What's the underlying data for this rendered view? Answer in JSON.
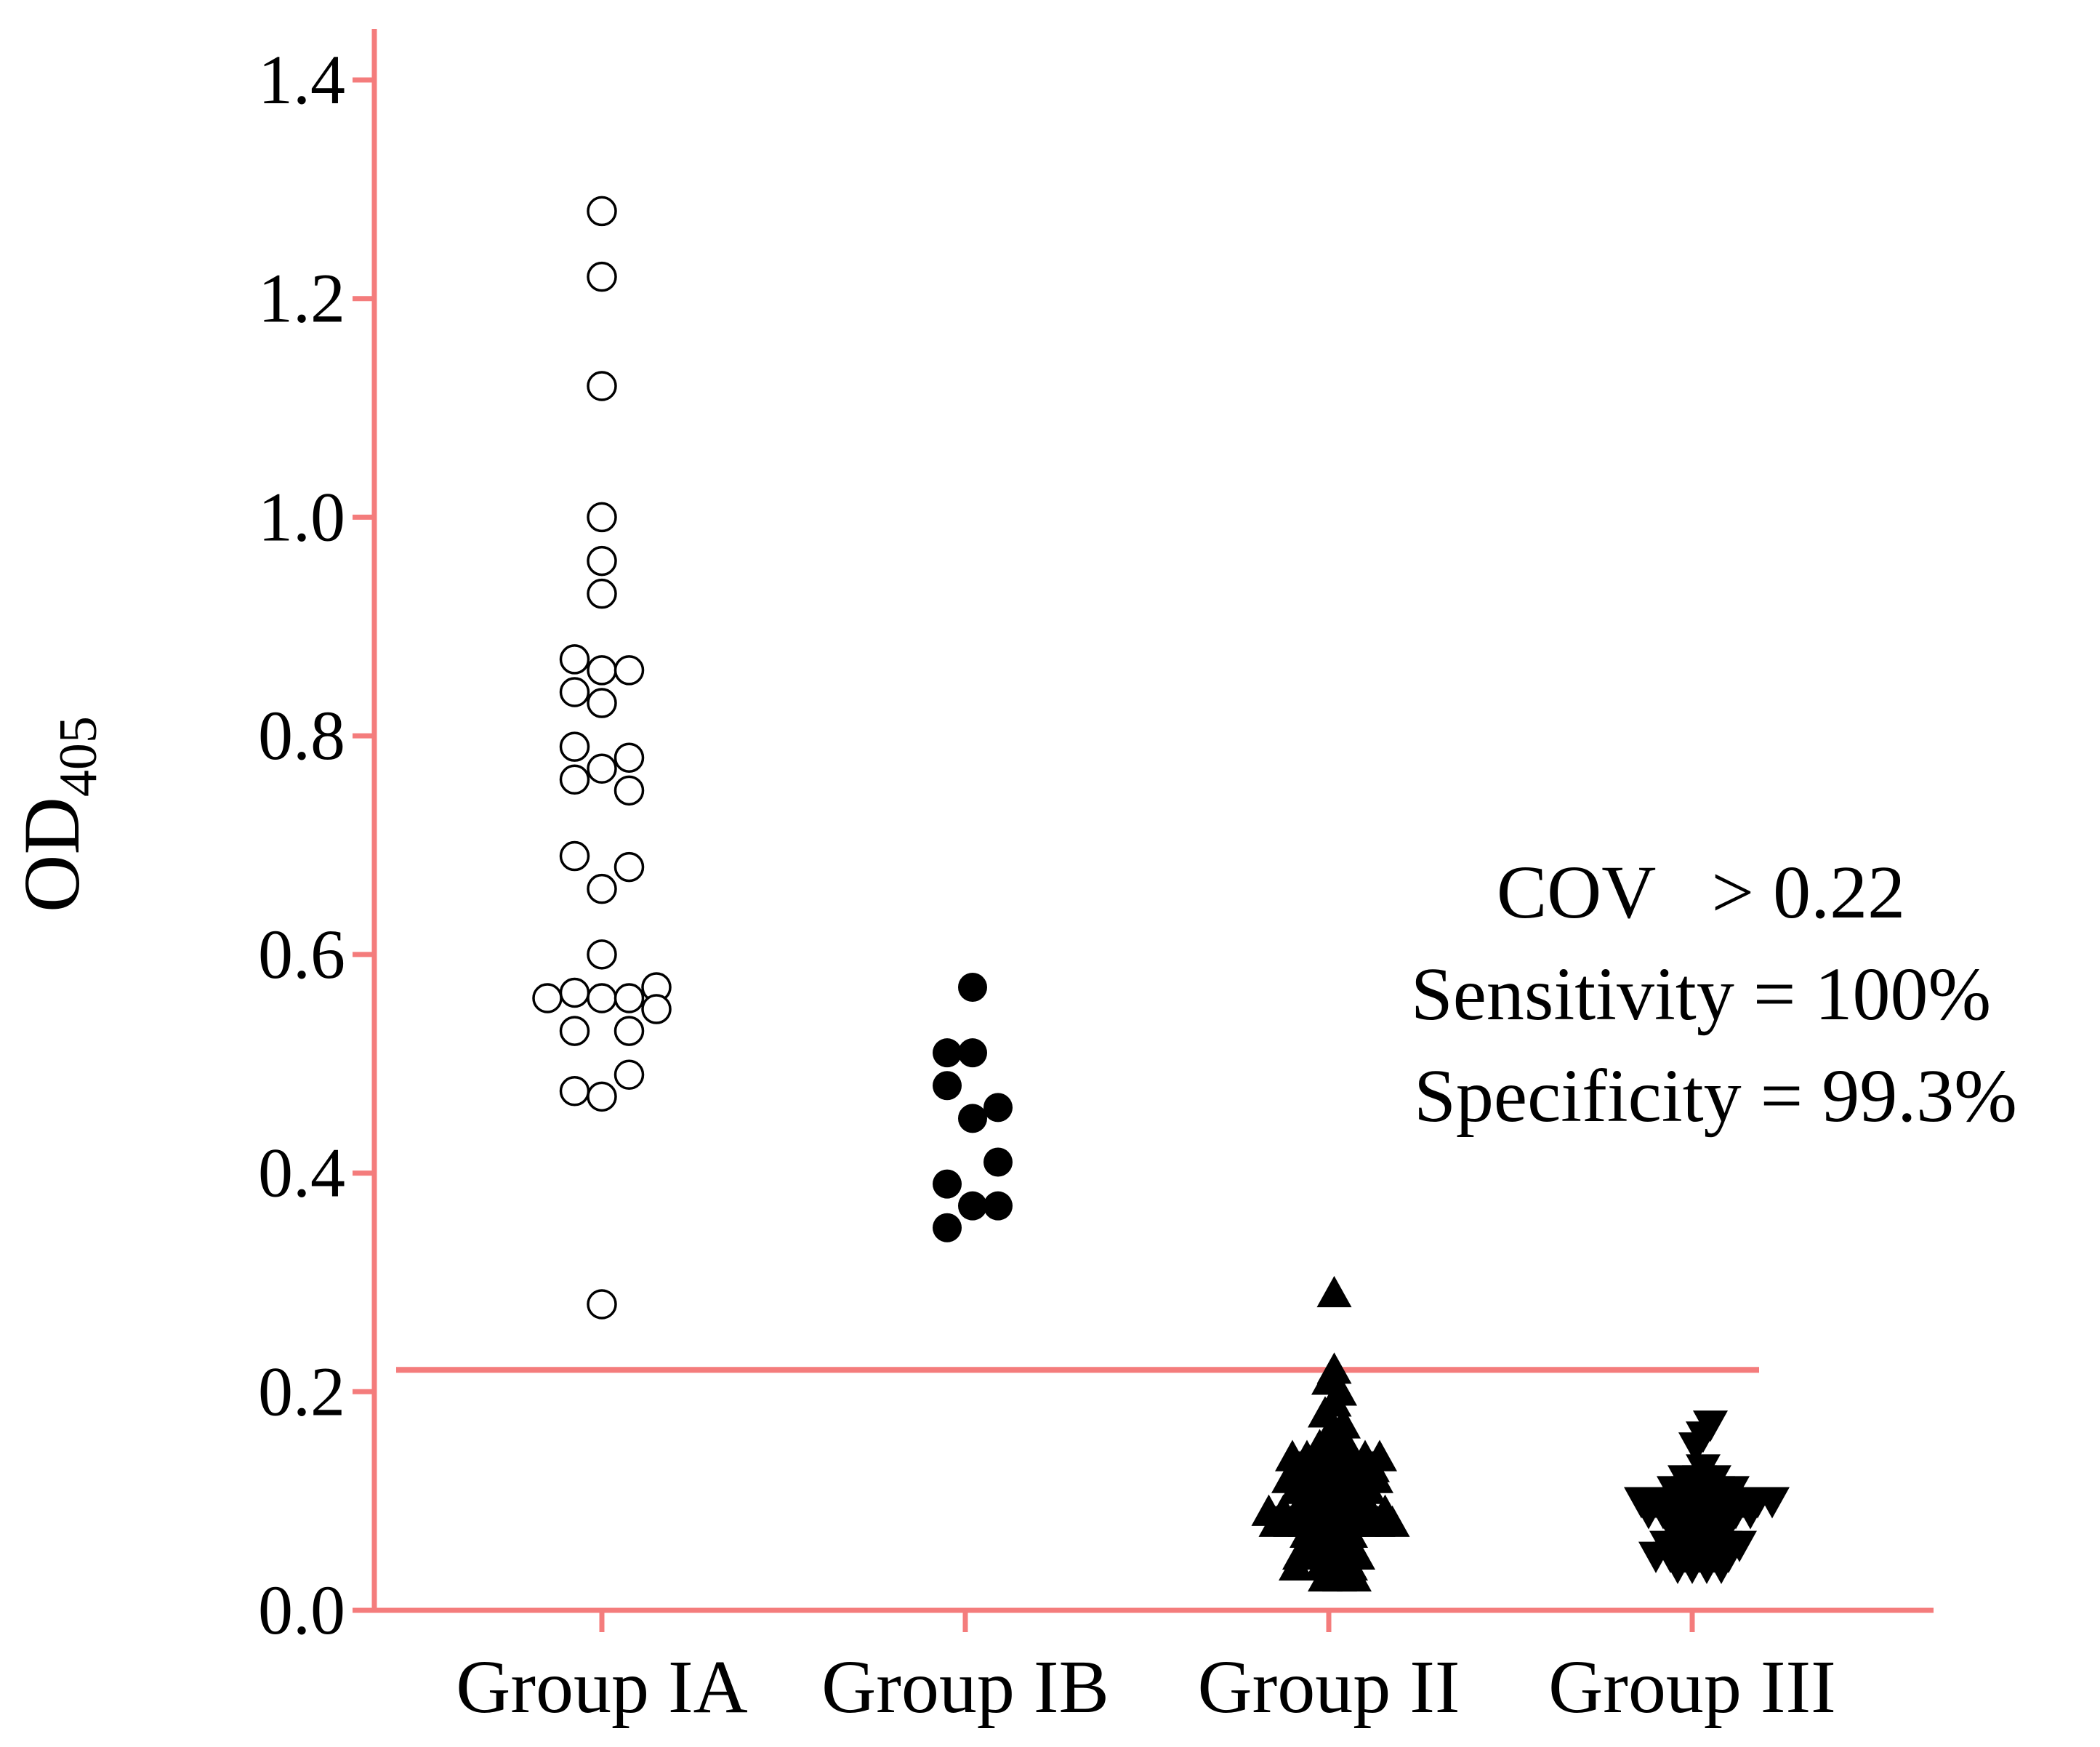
{
  "colors": {
    "axis": "#f47c7c",
    "cutoff": "#f47c7c",
    "marker": "#000000",
    "background": "#ffffff"
  },
  "chart_data": {
    "type": "scatter",
    "title": "",
    "xlabel": "",
    "ylabel": {
      "main": "OD",
      "subscript": "405"
    },
    "ylim": [
      0,
      1.5
    ],
    "yticks": [
      "0.0",
      "0.2",
      "0.4",
      "0.6",
      "0.8",
      "1.0",
      "1.2",
      "1.4"
    ],
    "categories": [
      "Group IA",
      "Group IB",
      "Group II",
      "Group III"
    ],
    "cutoff": 0.22,
    "annotation": [
      "COV   > 0.22",
      "Sensitivity = 100%",
      "Specificity = 99.3%"
    ],
    "series": [
      {
        "name": "Group IA",
        "marker": "open-circle",
        "points": [
          {
            "x": 0,
            "y": 1.28
          },
          {
            "x": 0,
            "y": 1.22
          },
          {
            "x": 0,
            "y": 1.12
          },
          {
            "x": 0,
            "y": 1.0
          },
          {
            "x": 0,
            "y": 0.96
          },
          {
            "x": 0,
            "y": 0.93
          },
          {
            "x": 0,
            "y": 0.86
          },
          {
            "x": 0,
            "y": 0.83
          },
          {
            "x": 0,
            "y": 0.77
          },
          {
            "x": 0,
            "y": 0.66
          },
          {
            "x": 0,
            "y": 0.6
          },
          {
            "x": 0,
            "y": 0.56
          },
          {
            "x": 0,
            "y": 0.47
          },
          {
            "x": 0,
            "y": 0.28
          },
          {
            "x": -0.15,
            "y": 0.87
          },
          {
            "x": -0.15,
            "y": 0.84
          },
          {
            "x": -0.15,
            "y": 0.79
          },
          {
            "x": -0.15,
            "y": 0.76
          },
          {
            "x": -0.15,
            "y": 0.69
          },
          {
            "x": -0.15,
            "y": 0.565
          },
          {
            "x": -0.15,
            "y": 0.53
          },
          {
            "x": -0.15,
            "y": 0.475
          },
          {
            "x": -0.3,
            "y": 0.56
          },
          {
            "x": 0.15,
            "y": 0.86
          },
          {
            "x": 0.15,
            "y": 0.78
          },
          {
            "x": 0.15,
            "y": 0.75
          },
          {
            "x": 0.15,
            "y": 0.68
          },
          {
            "x": 0.15,
            "y": 0.56
          },
          {
            "x": 0.15,
            "y": 0.53
          },
          {
            "x": 0.15,
            "y": 0.49
          },
          {
            "x": 0.3,
            "y": 0.57
          },
          {
            "x": 0.3,
            "y": 0.55
          }
        ]
      },
      {
        "name": "Group IB",
        "marker": "filled-circle",
        "points": [
          {
            "x": 1.04,
            "y": 0.57
          },
          {
            "x": 0.9,
            "y": 0.51
          },
          {
            "x": 1.04,
            "y": 0.51
          },
          {
            "x": 0.9,
            "y": 0.48
          },
          {
            "x": 1.18,
            "y": 0.46
          },
          {
            "x": 1.04,
            "y": 0.45
          },
          {
            "x": 1.18,
            "y": 0.41
          },
          {
            "x": 0.9,
            "y": 0.39
          },
          {
            "x": 1.04,
            "y": 0.37
          },
          {
            "x": 1.18,
            "y": 0.37
          },
          {
            "x": 0.9,
            "y": 0.35
          }
        ]
      },
      {
        "name": "Group II",
        "marker": "filled-triangle-up",
        "points": [
          {
            "x": 2.03,
            "y": 0.29
          },
          {
            "x": 2.03,
            "y": 0.22
          },
          {
            "x": 2.0,
            "y": 0.21
          },
          {
            "x": 2.06,
            "y": 0.2
          },
          {
            "x": 2.03,
            "y": 0.19
          },
          {
            "x": 1.98,
            "y": 0.18
          },
          {
            "x": 2.08,
            "y": 0.17
          },
          {
            "x": 2.0,
            "y": 0.16
          },
          {
            "x": 2.05,
            "y": 0.16
          },
          {
            "x": 1.95,
            "y": 0.15
          },
          {
            "x": 2.1,
            "y": 0.15
          },
          {
            "x": 1.8,
            "y": 0.14
          },
          {
            "x": 1.88,
            "y": 0.14
          },
          {
            "x": 1.96,
            "y": 0.14
          },
          {
            "x": 2.04,
            "y": 0.14
          },
          {
            "x": 2.12,
            "y": 0.14
          },
          {
            "x": 2.2,
            "y": 0.14
          },
          {
            "x": 2.28,
            "y": 0.14
          },
          {
            "x": 1.84,
            "y": 0.13
          },
          {
            "x": 1.92,
            "y": 0.13
          },
          {
            "x": 2.0,
            "y": 0.13
          },
          {
            "x": 2.08,
            "y": 0.13
          },
          {
            "x": 2.16,
            "y": 0.13
          },
          {
            "x": 2.24,
            "y": 0.13
          },
          {
            "x": 1.78,
            "y": 0.12
          },
          {
            "x": 1.86,
            "y": 0.12
          },
          {
            "x": 1.94,
            "y": 0.12
          },
          {
            "x": 2.02,
            "y": 0.12
          },
          {
            "x": 2.1,
            "y": 0.12
          },
          {
            "x": 2.18,
            "y": 0.12
          },
          {
            "x": 2.26,
            "y": 0.12
          },
          {
            "x": 1.82,
            "y": 0.11
          },
          {
            "x": 1.9,
            "y": 0.11
          },
          {
            "x": 1.98,
            "y": 0.11
          },
          {
            "x": 2.06,
            "y": 0.11
          },
          {
            "x": 2.14,
            "y": 0.11
          },
          {
            "x": 2.22,
            "y": 0.11
          },
          {
            "x": 1.86,
            "y": 0.1
          },
          {
            "x": 1.94,
            "y": 0.1
          },
          {
            "x": 2.02,
            "y": 0.1
          },
          {
            "x": 2.1,
            "y": 0.1
          },
          {
            "x": 2.18,
            "y": 0.1
          },
          {
            "x": 1.67,
            "y": 0.09
          },
          {
            "x": 1.75,
            "y": 0.09
          },
          {
            "x": 1.83,
            "y": 0.09
          },
          {
            "x": 1.91,
            "y": 0.09
          },
          {
            "x": 1.99,
            "y": 0.09
          },
          {
            "x": 2.07,
            "y": 0.09
          },
          {
            "x": 2.15,
            "y": 0.09
          },
          {
            "x": 2.23,
            "y": 0.09
          },
          {
            "x": 2.31,
            "y": 0.09
          },
          {
            "x": 1.71,
            "y": 0.08
          },
          {
            "x": 1.79,
            "y": 0.08
          },
          {
            "x": 1.87,
            "y": 0.08
          },
          {
            "x": 1.95,
            "y": 0.08
          },
          {
            "x": 2.03,
            "y": 0.08
          },
          {
            "x": 2.11,
            "y": 0.08
          },
          {
            "x": 2.19,
            "y": 0.08
          },
          {
            "x": 2.27,
            "y": 0.08
          },
          {
            "x": 2.35,
            "y": 0.08
          },
          {
            "x": 1.88,
            "y": 0.07
          },
          {
            "x": 1.96,
            "y": 0.07
          },
          {
            "x": 2.04,
            "y": 0.07
          },
          {
            "x": 2.12,
            "y": 0.07
          },
          {
            "x": 1.92,
            "y": 0.06
          },
          {
            "x": 2.0,
            "y": 0.06
          },
          {
            "x": 2.08,
            "y": 0.06
          },
          {
            "x": 1.84,
            "y": 0.05
          },
          {
            "x": 1.92,
            "y": 0.05
          },
          {
            "x": 2.0,
            "y": 0.05
          },
          {
            "x": 2.08,
            "y": 0.05
          },
          {
            "x": 2.16,
            "y": 0.05
          },
          {
            "x": 1.82,
            "y": 0.04
          },
          {
            "x": 1.96,
            "y": 0.04
          },
          {
            "x": 2.04,
            "y": 0.04
          },
          {
            "x": 2.12,
            "y": 0.04
          },
          {
            "x": 1.98,
            "y": 0.03
          },
          {
            "x": 2.06,
            "y": 0.03
          },
          {
            "x": 2.14,
            "y": 0.03
          }
        ]
      },
      {
        "name": "Group III",
        "marker": "filled-triangle-down",
        "points": [
          {
            "x": 3.1,
            "y": 0.17
          },
          {
            "x": 3.06,
            "y": 0.16
          },
          {
            "x": 3.02,
            "y": 0.15
          },
          {
            "x": 3.06,
            "y": 0.13
          },
          {
            "x": 2.96,
            "y": 0.12
          },
          {
            "x": 3.04,
            "y": 0.12
          },
          {
            "x": 3.12,
            "y": 0.12
          },
          {
            "x": 2.9,
            "y": 0.11
          },
          {
            "x": 2.98,
            "y": 0.11
          },
          {
            "x": 3.06,
            "y": 0.11
          },
          {
            "x": 3.14,
            "y": 0.11
          },
          {
            "x": 3.22,
            "y": 0.11
          },
          {
            "x": 2.72,
            "y": 0.1
          },
          {
            "x": 2.8,
            "y": 0.1
          },
          {
            "x": 2.88,
            "y": 0.1
          },
          {
            "x": 2.96,
            "y": 0.1
          },
          {
            "x": 3.04,
            "y": 0.1
          },
          {
            "x": 3.12,
            "y": 0.1
          },
          {
            "x": 3.2,
            "y": 0.1
          },
          {
            "x": 3.28,
            "y": 0.1
          },
          {
            "x": 3.36,
            "y": 0.1
          },
          {
            "x": 3.44,
            "y": 0.1
          },
          {
            "x": 2.76,
            "y": 0.09
          },
          {
            "x": 2.84,
            "y": 0.09
          },
          {
            "x": 2.92,
            "y": 0.09
          },
          {
            "x": 3.0,
            "y": 0.09
          },
          {
            "x": 3.08,
            "y": 0.09
          },
          {
            "x": 3.16,
            "y": 0.09
          },
          {
            "x": 3.24,
            "y": 0.09
          },
          {
            "x": 3.32,
            "y": 0.09
          },
          {
            "x": 2.88,
            "y": 0.08
          },
          {
            "x": 2.96,
            "y": 0.08
          },
          {
            "x": 3.04,
            "y": 0.08
          },
          {
            "x": 3.12,
            "y": 0.08
          },
          {
            "x": 3.2,
            "y": 0.08
          },
          {
            "x": 2.92,
            "y": 0.07
          },
          {
            "x": 3.0,
            "y": 0.07
          },
          {
            "x": 3.08,
            "y": 0.07
          },
          {
            "x": 3.16,
            "y": 0.07
          },
          {
            "x": 2.86,
            "y": 0.06
          },
          {
            "x": 2.94,
            "y": 0.06
          },
          {
            "x": 3.02,
            "y": 0.06
          },
          {
            "x": 3.1,
            "y": 0.06
          },
          {
            "x": 3.18,
            "y": 0.06
          },
          {
            "x": 3.26,
            "y": 0.06
          },
          {
            "x": 2.8,
            "y": 0.05
          },
          {
            "x": 2.88,
            "y": 0.05
          },
          {
            "x": 2.96,
            "y": 0.05
          },
          {
            "x": 3.04,
            "y": 0.05
          },
          {
            "x": 3.12,
            "y": 0.05
          },
          {
            "x": 3.2,
            "y": 0.05
          },
          {
            "x": 2.92,
            "y": 0.04
          },
          {
            "x": 3.0,
            "y": 0.04
          },
          {
            "x": 3.08,
            "y": 0.04
          },
          {
            "x": 3.16,
            "y": 0.04
          }
        ]
      }
    ]
  }
}
